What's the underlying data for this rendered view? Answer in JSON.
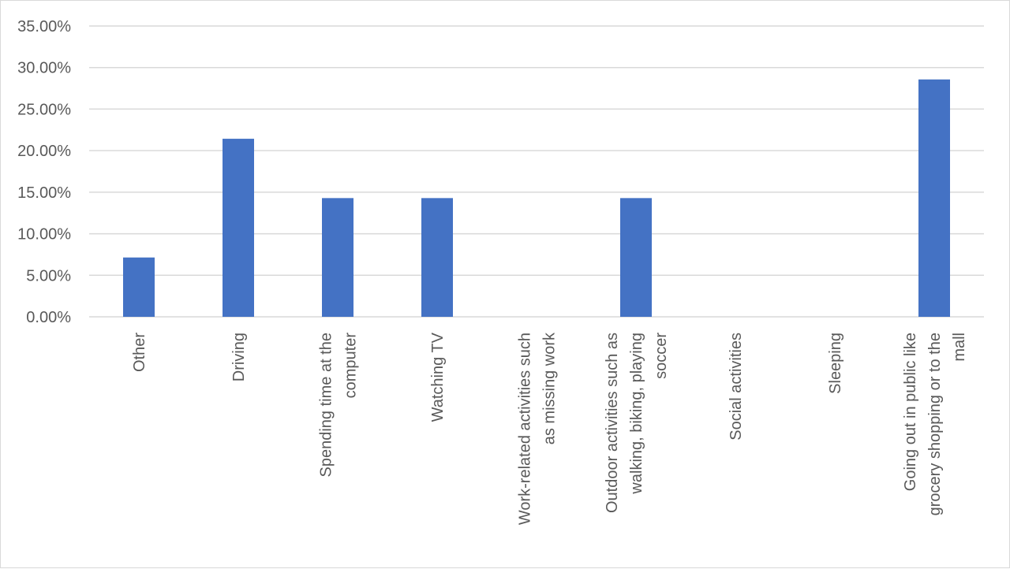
{
  "chart_data": {
    "type": "bar",
    "title": "",
    "xlabel": "",
    "ylabel": "",
    "ylim": [
      0,
      0.35
    ],
    "yticks": [
      "0.00%",
      "5.00%",
      "10.00%",
      "15.00%",
      "20.00%",
      "25.00%",
      "30.00%",
      "35.00%"
    ],
    "grid": true,
    "legend": "none",
    "categories": [
      "Other",
      "Driving",
      "Spending time at the computer",
      "Watching TV",
      "Work-related activities such as missing work",
      "Outdoor activities such as walking, biking, playing soccer",
      "Social activities",
      "Sleeping",
      "Going out in public like grocery shopping or to the mall"
    ],
    "category_lines": [
      [
        "Other"
      ],
      [
        "Driving"
      ],
      [
        "Spending time at the",
        "computer"
      ],
      [
        "Watching TV"
      ],
      [
        "Work-related activities such",
        "as missing work"
      ],
      [
        "Outdoor activities such as",
        "walking, biking, playing",
        "soccer"
      ],
      [
        "Social activities"
      ],
      [
        "Sleeping"
      ],
      [
        "Going out in public like",
        "grocery shopping or to the",
        "mall"
      ]
    ],
    "values": [
      0.0714,
      0.2143,
      0.1429,
      0.1429,
      0,
      0.1429,
      0,
      0,
      0.2857
    ],
    "colors": {
      "bar": "#4472c4",
      "grid": "#d9d9d9",
      "text": "#595959"
    }
  }
}
